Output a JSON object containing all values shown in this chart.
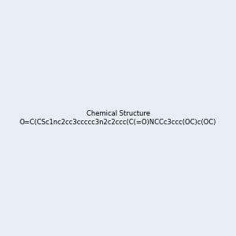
{
  "smiles": "O=C(CSc1nc2cc3ccccc3n2c2ccc(C(=O)NCCc3ccc(OC)c(OC)c3)cc12)NCC1CCCO1",
  "image_size": 300,
  "background_color": "#e8eef5",
  "title": ""
}
